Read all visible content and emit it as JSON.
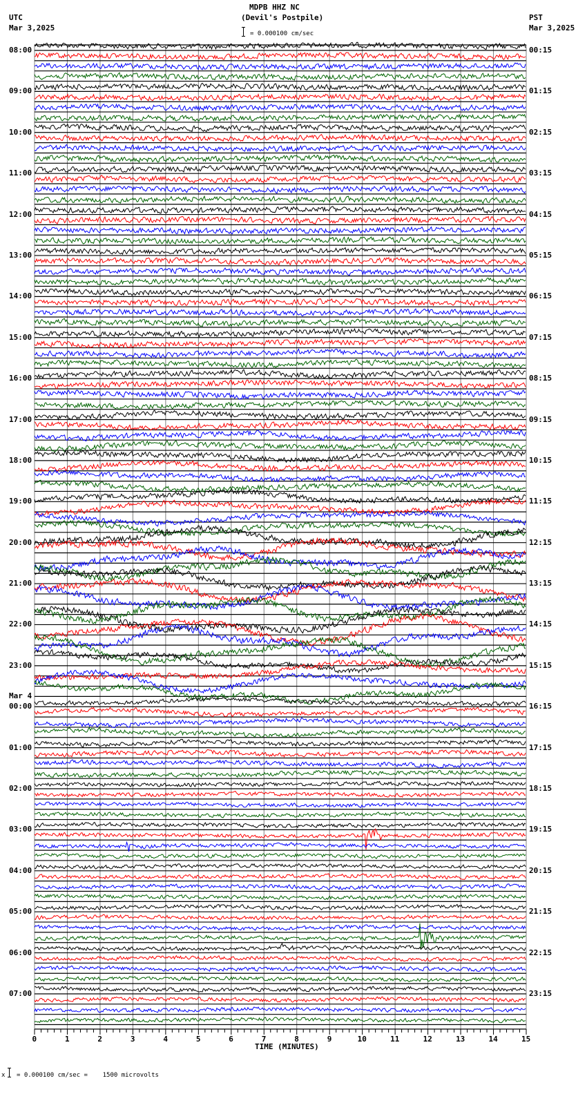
{
  "header": {
    "station": "MDPB HHZ NC",
    "location": "(Devil's Postpile)",
    "scale_text": "= 0.000100 cm/sec",
    "left_tz": "UTC",
    "left_date": "Mar 3,2025",
    "right_tz": "PST",
    "right_date": "Mar 3,2025"
  },
  "footer": {
    "scale_prefix": "x",
    "scale_text": "= 0.000100 cm/sec =    1500 microvolts"
  },
  "chart_data": {
    "type": "line",
    "title": "MDPB HHZ NC (Devil's Postpile)",
    "xlabel": "TIME (MINUTES)",
    "ylabel": "",
    "xlim": [
      0,
      15
    ],
    "x_ticks": [
      "0",
      "1",
      "2",
      "3",
      "4",
      "5",
      "6",
      "7",
      "8",
      "9",
      "10",
      "11",
      "12",
      "13",
      "14",
      "15"
    ],
    "minor_ticks_per_minute": 5,
    "traces_per_hour": 4,
    "trace_colors": [
      "#000000",
      "#ff0000",
      "#0000ff",
      "#006400"
    ],
    "date_change_label": "Mar 4",
    "date_change_before_index": 16,
    "left_labels": [
      "08:00",
      "09:00",
      "10:00",
      "11:00",
      "12:00",
      "13:00",
      "14:00",
      "15:00",
      "16:00",
      "17:00",
      "18:00",
      "19:00",
      "20:00",
      "21:00",
      "22:00",
      "23:00",
      "00:00",
      "01:00",
      "02:00",
      "03:00",
      "04:00",
      "05:00",
      "06:00",
      "07:00"
    ],
    "right_labels": [
      "00:15",
      "01:15",
      "02:15",
      "03:15",
      "04:15",
      "05:15",
      "06:15",
      "07:15",
      "08:15",
      "09:15",
      "10:15",
      "11:15",
      "12:15",
      "13:15",
      "14:15",
      "15:15",
      "16:15",
      "17:15",
      "18:15",
      "19:15",
      "20:15",
      "21:15",
      "22:15",
      "23:15"
    ],
    "hour_noise_amplitude": [
      5,
      5,
      5,
      5,
      5,
      5,
      5,
      5,
      5,
      5,
      5,
      5,
      6,
      6,
      6,
      5,
      4,
      4,
      3.5,
      3.5,
      3.5,
      3.5,
      3.5,
      3.5
    ],
    "hour_slow_wave_amplitude": [
      1,
      1,
      1,
      1,
      1,
      1,
      1,
      2,
      2,
      3,
      4,
      6,
      10,
      12,
      14,
      10,
      3,
      2,
      1,
      1,
      1,
      1,
      1,
      1
    ],
    "events": [
      {
        "hour_index": 19,
        "trace": 1,
        "minute": 10.1,
        "amplitude": 22,
        "color": "#ff0000",
        "label": "local event"
      },
      {
        "hour_index": 21,
        "trace": 3,
        "minute": 11.7,
        "amplitude": 30,
        "color": "#006400",
        "label": "local event"
      },
      {
        "hour_index": 22,
        "trace": 0,
        "minute": 7.5,
        "amplitude": 8,
        "color": "#000000",
        "label": "small event"
      },
      {
        "hour_index": 19,
        "trace": 2,
        "minute": 2.8,
        "amplitude": 8,
        "color": "#0000ff",
        "label": "small event"
      }
    ]
  }
}
